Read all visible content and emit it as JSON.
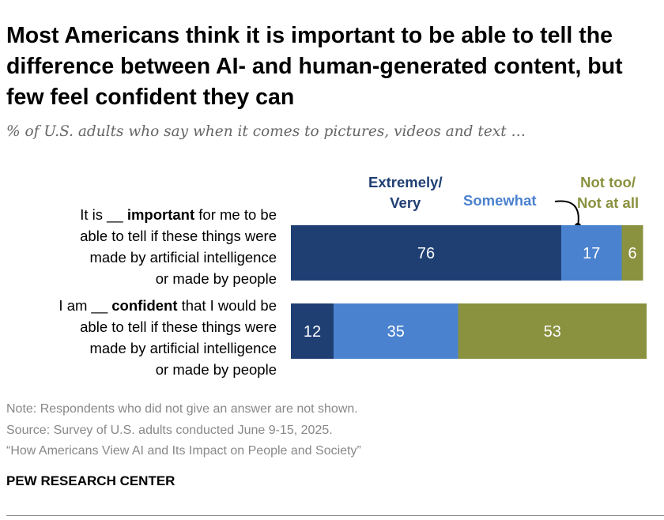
{
  "title": "Most Americans think it is important to be able to tell the difference between AI- and human-generated content, but few feel confident they can",
  "subtitle": "% of U.S. adults who say when it comes to pictures, videos and text …",
  "chart_data": {
    "type": "bar",
    "orientation": "horizontal-stacked",
    "categories": [
      {
        "pre": "It is __ ",
        "bold": "important",
        "post": " for me to be able to tell if these things were made by artificial intelligence or made by people"
      },
      {
        "pre": "I am __ ",
        "bold": "confident",
        "post": " that I would be able to tell if these things were made by artificial intelligence or made by people"
      }
    ],
    "series": [
      {
        "name": "Extremely/ Very",
        "color": "#1f3f73",
        "values": [
          76,
          12
        ]
      },
      {
        "name": "Somewhat",
        "color": "#4a82cf",
        "values": [
          17,
          35
        ]
      },
      {
        "name": "Not too/ Not at all",
        "color": "#8a913f",
        "values": [
          6,
          53
        ]
      }
    ],
    "xlim": [
      0,
      100
    ],
    "legend": "top, above bars"
  },
  "legend_lines": {
    "s0": [
      "Extremely/",
      "Very"
    ],
    "s2": [
      "Not too/",
      "Not at all"
    ]
  },
  "label_lines": [
    [
      "able to tell if these things were",
      "made by artificial intelligence",
      "or made by people"
    ],
    [
      "able to tell if these things were",
      "made by artificial intelligence",
      "or made by people"
    ]
  ],
  "footer": {
    "note": "Note: Respondents who did not give an answer are not shown.",
    "source": "Source: Survey of U.S. adults conducted June 9-15, 2025.",
    "report": "“How Americans View AI and Its Impact on People and Society”",
    "brand": "PEW RESEARCH CENTER"
  }
}
